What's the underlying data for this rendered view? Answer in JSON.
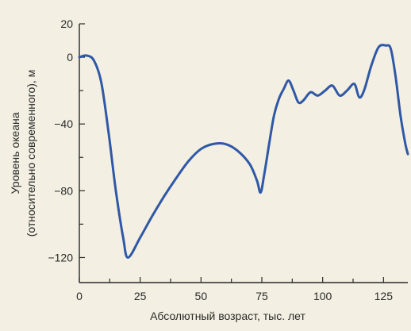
{
  "chart_data": {
    "type": "line",
    "xlabel": "Абсолютный возраст, тыс. лет",
    "ylabel_line1": "Уровень океана",
    "ylabel_line2": "(относительно современного), м",
    "xlim": [
      0,
      135
    ],
    "ylim": [
      -135,
      20
    ],
    "xticks": [
      0,
      25,
      50,
      75,
      100,
      125
    ],
    "yticks": [
      20,
      0,
      -40,
      -80,
      -120
    ],
    "grid": false,
    "series": [
      {
        "color": "#2f58a6",
        "x": [
          0,
          3,
          6,
          9,
          12,
          15,
          18,
          20,
          25,
          30,
          35,
          40,
          45,
          50,
          55,
          60,
          65,
          70,
          73,
          74.5,
          76,
          78,
          80,
          82,
          84,
          86,
          88,
          90,
          92,
          95,
          98,
          101,
          104,
          107,
          110,
          113,
          115,
          117,
          120,
          123,
          126,
          128,
          130,
          132,
          134,
          135
        ],
        "y": [
          0,
          1,
          -2,
          -15,
          -45,
          -80,
          -108,
          -120,
          -108,
          -95,
          -83,
          -72,
          -62,
          -55,
          -52,
          -52,
          -56,
          -64,
          -74,
          -81,
          -70,
          -52,
          -35,
          -25,
          -19,
          -14,
          -20,
          -27,
          -26,
          -21,
          -23,
          -20,
          -17,
          -23,
          -20,
          -16,
          -24,
          -20,
          -5,
          6,
          7,
          5,
          -12,
          -35,
          -52,
          -58
        ]
      }
    ]
  }
}
